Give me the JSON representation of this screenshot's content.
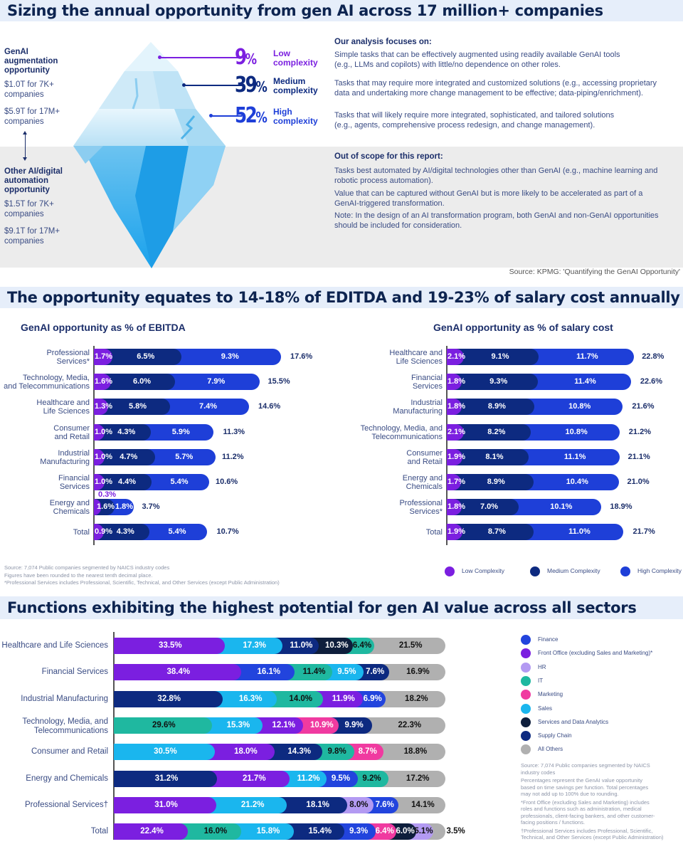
{
  "sections": {
    "title1": "Sizing the annual opportunity from gen AI across 17 million+ companies",
    "title2": "The opportunity equates to 14-18% of EDITDA and 19-23% of salary cost annually",
    "title3": "Functions exhibiting the highest potential for gen AI value across all sectors"
  },
  "iceberg": {
    "genai_heading": [
      "GenAI",
      "augmentation",
      "opportunity"
    ],
    "genai_values": [
      [
        "$1.0T for 7K+",
        "companies"
      ],
      [
        "$5.9T for 17M+",
        "companies"
      ]
    ],
    "other_heading": [
      "Other AI/digital",
      "automation",
      "opportunity"
    ],
    "other_values": [
      [
        "$1.5T for 7K+",
        "companies"
      ],
      [
        "$9.1T for 17M+",
        "companies"
      ]
    ],
    "complexity": [
      {
        "pct": "9",
        "label": [
          "Low",
          "complexity"
        ],
        "color": "#7b1fe0"
      },
      {
        "pct": "39",
        "label": [
          "Medium",
          "complexity"
        ],
        "color": "#0d2a80"
      },
      {
        "pct": "52",
        "label": [
          "High",
          "complexity"
        ],
        "color": "#1e3fd8"
      }
    ],
    "pct_sign": "%"
  },
  "analysis": {
    "heading": "Our analysis focuses on:",
    "items": [
      [
        "Simple tasks that can be effectively augmented using readily available GenAI tools",
        "(e.g., LLMs and copilots) with little/no dependence on other roles."
      ],
      [
        "Tasks that may require more integrated and customized solutions (e.g., accessing proprietary",
        "data and undertaking more change management to be effective; data-piping/enrichment)."
      ],
      [
        "Tasks that will likely require more integrated, sophisticated, and tailored solutions",
        "(e.g., agents, comprehensive process redesign, and change management)."
      ]
    ]
  },
  "out_of_scope": {
    "heading": "Out of scope for this report:",
    "items": [
      [
        "Tasks best automated by AI/digital technologies other than GenAI (e.g., machine learning and",
        "robotic process automation)."
      ],
      [
        "Value that can be captured without GenAI but is more likely to be accelerated as part of a",
        "GenAI-triggered transformation."
      ],
      [
        "Note: In the design of an AI transformation program, both GenAI and non-GenAI opportunities",
        "should be included for consideration."
      ]
    ]
  },
  "source1": "Source: KPMG: 'Quantifying the GenAI Opportunity'",
  "chart_data": [
    {
      "type": "bar",
      "stacked": true,
      "orientation": "horizontal",
      "title": "GenAI opportunity as % of EBITDA",
      "categories": [
        [
          "Professional",
          "Services*"
        ],
        [
          "Technology, Media,",
          "and Telecommunications"
        ],
        [
          "Healthcare and",
          "Life Sciences"
        ],
        [
          "Consumer",
          "and Retail"
        ],
        [
          "Industrial",
          "Manufacturing"
        ],
        [
          "Financial",
          "Services"
        ],
        [
          "Energy and",
          "Chemicals"
        ],
        [
          "Total"
        ]
      ],
      "series": [
        {
          "name": "Low Complexity",
          "color": "#7b1fe0",
          "values": [
            1.7,
            1.6,
            1.3,
            1.0,
            1.0,
            1.0,
            0.3,
            0.9
          ]
        },
        {
          "name": "Medium Complexity",
          "color": "#0d2a80",
          "values": [
            6.5,
            6.0,
            5.8,
            4.3,
            4.7,
            4.4,
            1.6,
            4.3
          ]
        },
        {
          "name": "High Complexity",
          "color": "#1e3fd8",
          "values": [
            9.3,
            7.9,
            7.4,
            5.9,
            5.7,
            5.4,
            1.8,
            5.4
          ]
        }
      ],
      "totals": [
        17.6,
        15.5,
        14.6,
        11.3,
        11.2,
        10.6,
        3.7,
        10.7
      ],
      "footnotes": [
        "Source: 7,074 Public companies segmented by NAICS industry codes",
        "Figures have been rounded to the nearest tenth decimal place.",
        "*Professional Services includes Professional, Scientific, Technical, and Other Services (except Public Administration)"
      ]
    },
    {
      "type": "bar",
      "stacked": true,
      "orientation": "horizontal",
      "title": "GenAI opportunity as % of salary cost",
      "categories": [
        [
          "Healthcare and",
          "Life Sciences"
        ],
        [
          "Financial",
          "Services"
        ],
        [
          "Industrial",
          "Manufacturing"
        ],
        [
          "Technology, Media, and",
          "Telecommunications"
        ],
        [
          "Consumer",
          "and Retail"
        ],
        [
          "Energy and",
          "Chemicals"
        ],
        [
          "Professional",
          "Services*"
        ],
        [
          "Total"
        ]
      ],
      "series": [
        {
          "name": "Low Complexity",
          "color": "#7b1fe0",
          "values": [
            2.1,
            1.8,
            1.8,
            2.1,
            1.9,
            1.7,
            1.8,
            1.9
          ]
        },
        {
          "name": "Medium Complexity",
          "color": "#0d2a80",
          "values": [
            9.1,
            9.3,
            8.9,
            8.2,
            8.1,
            8.9,
            7.0,
            8.7
          ]
        },
        {
          "name": "High Complexity",
          "color": "#1e3fd8",
          "values": [
            11.7,
            11.4,
            10.8,
            10.8,
            11.1,
            10.4,
            10.1,
            11.0
          ]
        }
      ],
      "totals": [
        22.8,
        22.6,
        21.6,
        21.2,
        21.1,
        21.0,
        18.9,
        21.7
      ],
      "legend": [
        "Low Complexity",
        "Medium Complexity",
        "High Complexity"
      ],
      "legend_position": "bottom"
    },
    {
      "type": "bar",
      "stacked": true,
      "orientation": "horizontal",
      "title": "Functions exhibiting the highest potential for gen AI value across all sectors",
      "categories": [
        [
          "Healthcare and Life Sciences"
        ],
        [
          "Financial Services"
        ],
        [
          "Industrial Manufacturing"
        ],
        [
          "Technology, Media, and",
          "Telecommunications"
        ],
        [
          "Consumer and Retail"
        ],
        [
          "Energy and Chemicals"
        ],
        [
          "Professional Services†"
        ],
        [
          "Total"
        ]
      ],
      "functions": {
        "Finance": "#2244dd",
        "Front Office (excluding Sales and Marketing)*": "#7b1fe0",
        "HR": "#b39af2",
        "IT": "#1fb8a0",
        "Marketing": "#f03aa0",
        "Sales": "#1ab6ee",
        "Services and Data Analytics": "#0e1e3c",
        "Supply Chain": "#0d2a80",
        "All Others": "#b0b0b0"
      },
      "rows": [
        [
          [
            "Front Office (excluding Sales and Marketing)*",
            33.5
          ],
          [
            "Sales",
            17.3
          ],
          [
            "Supply Chain",
            11.0
          ],
          [
            "Services and Data Analytics",
            10.3
          ],
          [
            "IT",
            6.4
          ],
          [
            "All Others",
            21.5
          ]
        ],
        [
          [
            "Front Office (excluding Sales and Marketing)*",
            38.4
          ],
          [
            "Finance",
            16.1
          ],
          [
            "IT",
            11.4
          ],
          [
            "Sales",
            9.5
          ],
          [
            "Supply Chain",
            7.6
          ],
          [
            "All Others",
            16.9
          ]
        ],
        [
          [
            "Supply Chain",
            32.8
          ],
          [
            "Sales",
            16.3
          ],
          [
            "IT",
            14.0
          ],
          [
            "Front Office (excluding Sales and Marketing)*",
            11.9
          ],
          [
            "Finance",
            6.9
          ],
          [
            "All Others",
            18.2
          ]
        ],
        [
          [
            "IT",
            29.6
          ],
          [
            "Sales",
            15.3
          ],
          [
            "Front Office (excluding Sales and Marketing)*",
            12.1
          ],
          [
            "Marketing",
            10.9
          ],
          [
            "Supply Chain",
            9.9
          ],
          [
            "All Others",
            22.3
          ]
        ],
        [
          [
            "Sales",
            30.5
          ],
          [
            "Front Office (excluding Sales and Marketing)*",
            18.0
          ],
          [
            "Supply Chain",
            14.3
          ],
          [
            "IT",
            9.8
          ],
          [
            "Marketing",
            8.7
          ],
          [
            "All Others",
            18.8
          ]
        ],
        [
          [
            "Supply Chain",
            31.2
          ],
          [
            "Front Office (excluding Sales and Marketing)*",
            21.7
          ],
          [
            "Sales",
            11.2
          ],
          [
            "Finance",
            9.5
          ],
          [
            "IT",
            9.2
          ],
          [
            "All Others",
            17.2
          ]
        ],
        [
          [
            "Front Office (excluding Sales and Marketing)*",
            31.0
          ],
          [
            "Sales",
            21.2
          ],
          [
            "Supply Chain",
            18.1
          ],
          [
            "HR",
            8.0
          ],
          [
            "Finance",
            7.6
          ],
          [
            "All Others",
            14.1
          ]
        ],
        [
          [
            "Front Office (excluding Sales and Marketing)*",
            22.4
          ],
          [
            "IT",
            16.0
          ],
          [
            "Sales",
            15.8
          ],
          [
            "Supply Chain",
            15.4
          ],
          [
            "Finance",
            9.3
          ],
          [
            "Marketing",
            6.4
          ],
          [
            "Services and Data Analytics",
            6.0
          ],
          [
            "HR",
            5.1
          ],
          [
            "All Others",
            3.5
          ]
        ]
      ],
      "xlim": [
        0,
        100
      ],
      "legend_position": "right",
      "footnotes": [
        [
          "Source: 7,074 Public companies segmented by NAICS",
          "industry codes"
        ],
        [
          "Percentages represent the GenAI value opportunity",
          "based on time savings per function. Total percentages",
          "may not add up to 100% due to rounding."
        ],
        [
          "*Front Office (excluding Sales and Marketing) includes",
          "roles and functions such as administration, medical",
          "professionals, client-facing bankers, and other customer-",
          "facing positions / functions."
        ],
        [
          "†Professional Services includes Professional, Scientific,",
          "Technical, and Other Services (except Public Administration)"
        ]
      ]
    }
  ]
}
